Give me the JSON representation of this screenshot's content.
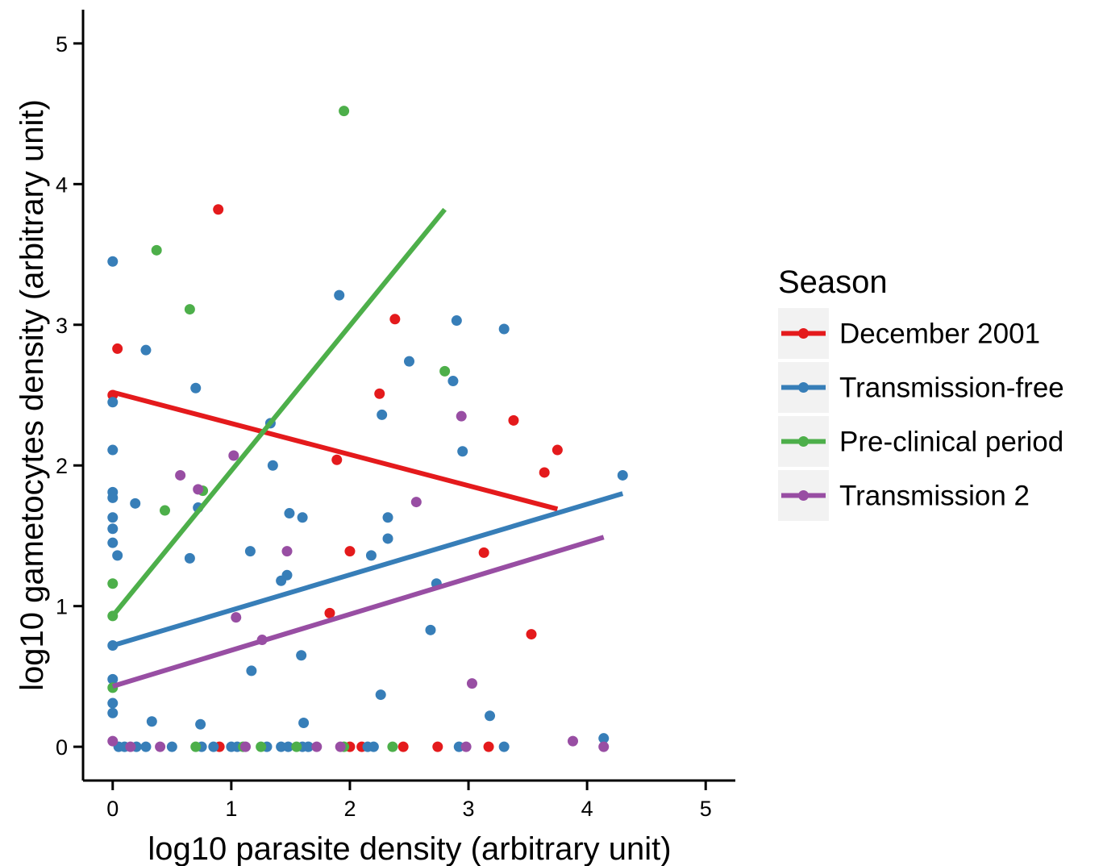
{
  "chart_data": {
    "type": "scatter",
    "xlabel": "log10 parasite density (arbitrary unit)",
    "ylabel": "log10 gametocytes density (arbitrary unit)",
    "xlim": [
      -0.25,
      5.25
    ],
    "ylim": [
      -0.24,
      5.24
    ],
    "x_ticks": [
      0,
      1,
      2,
      3,
      4,
      5
    ],
    "y_ticks": [
      0,
      1,
      2,
      3,
      4,
      5
    ],
    "grid": false,
    "legend": {
      "title": "Season",
      "position": "right"
    },
    "series": [
      {
        "name": "December 2001",
        "color": "#E41A1C",
        "points": [
          [
            0,
            2.5
          ],
          [
            0.04,
            2.83
          ],
          [
            0.89,
            3.82
          ],
          [
            2.38,
            3.04
          ],
          [
            2.25,
            2.51
          ],
          [
            3.38,
            2.32
          ],
          [
            3.75,
            2.11
          ],
          [
            3.64,
            1.95
          ],
          [
            1.89,
            2.04
          ],
          [
            2.0,
            1.39
          ],
          [
            3.13,
            1.38
          ],
          [
            1.83,
            0.95
          ],
          [
            3.53,
            0.8
          ],
          [
            0.9,
            0
          ],
          [
            2.0,
            0
          ],
          [
            2.1,
            0
          ],
          [
            2.45,
            0
          ],
          [
            2.74,
            0
          ],
          [
            3.17,
            0
          ]
        ],
        "trend": {
          "x": [
            0,
            3.75
          ],
          "y": [
            2.52,
            1.69
          ]
        }
      },
      {
        "name": "Transmission-free",
        "color": "#377EB8",
        "points": [
          [
            0,
            3.45
          ],
          [
            0,
            2.45
          ],
          [
            0,
            2.11
          ],
          [
            0,
            1.81
          ],
          [
            0,
            1.77
          ],
          [
            0,
            1.63
          ],
          [
            0,
            1.55
          ],
          [
            0,
            1.45
          ],
          [
            0.04,
            1.36
          ],
          [
            0.19,
            1.73
          ],
          [
            0.28,
            2.82
          ],
          [
            0.7,
            2.55
          ],
          [
            0.72,
            1.7
          ],
          [
            0.65,
            1.34
          ],
          [
            1.33,
            2.3
          ],
          [
            1.35,
            2.0
          ],
          [
            1.91,
            3.21
          ],
          [
            2.5,
            2.74
          ],
          [
            2.9,
            3.03
          ],
          [
            3.3,
            2.97
          ],
          [
            2.87,
            2.6
          ],
          [
            2.95,
            2.1
          ],
          [
            2.27,
            2.36
          ],
          [
            1.49,
            1.66
          ],
          [
            1.6,
            1.63
          ],
          [
            2.32,
            1.63
          ],
          [
            2.32,
            1.48
          ],
          [
            2.18,
            1.36
          ],
          [
            1.16,
            1.39
          ],
          [
            1.47,
            1.22
          ],
          [
            1.42,
            1.18
          ],
          [
            2.73,
            1.16
          ],
          [
            2.68,
            0.83
          ],
          [
            1.59,
            0.65
          ],
          [
            1.17,
            0.54
          ],
          [
            2.26,
            0.37
          ],
          [
            0,
            0.72
          ],
          [
            0,
            0.48
          ],
          [
            0,
            0.31
          ],
          [
            0,
            0.24
          ],
          [
            0.33,
            0.18
          ],
          [
            0.74,
            0.16
          ],
          [
            1.61,
            0.17
          ],
          [
            3.18,
            0.22
          ],
          [
            4.3,
            1.93
          ],
          [
            4.14,
            0.06
          ],
          [
            0.05,
            0
          ],
          [
            0.1,
            0
          ],
          [
            0.2,
            0
          ],
          [
            0.28,
            0
          ],
          [
            0.5,
            0
          ],
          [
            0.75,
            0
          ],
          [
            0.85,
            0
          ],
          [
            1.0,
            0
          ],
          [
            1.05,
            0
          ],
          [
            1.3,
            0
          ],
          [
            1.42,
            0
          ],
          [
            1.48,
            0
          ],
          [
            1.6,
            0
          ],
          [
            1.65,
            0
          ],
          [
            2.15,
            0
          ],
          [
            2.2,
            0
          ],
          [
            2.92,
            0
          ],
          [
            3.3,
            0
          ]
        ],
        "trend": {
          "x": [
            0,
            4.3
          ],
          "y": [
            0.72,
            1.8
          ]
        }
      },
      {
        "name": "Pre-clinical period",
        "color": "#4DAF4A",
        "points": [
          [
            1.95,
            4.52
          ],
          [
            0.37,
            3.53
          ],
          [
            0.65,
            3.11
          ],
          [
            2.8,
            2.67
          ],
          [
            0.76,
            1.82
          ],
          [
            0.44,
            1.68
          ],
          [
            0,
            1.16
          ],
          [
            0,
            0.93
          ],
          [
            0,
            0.42
          ],
          [
            0.7,
            0
          ],
          [
            1.1,
            0
          ],
          [
            1.25,
            0
          ],
          [
            1.55,
            0
          ],
          [
            1.95,
            0
          ],
          [
            2.36,
            0
          ]
        ],
        "trend": {
          "x": [
            0,
            2.8
          ],
          "y": [
            0.93,
            3.82
          ]
        }
      },
      {
        "name": "Transmission 2",
        "color": "#984EA3",
        "points": [
          [
            0.57,
            1.93
          ],
          [
            0.72,
            1.83
          ],
          [
            1.02,
            2.07
          ],
          [
            2.94,
            2.35
          ],
          [
            2.56,
            1.74
          ],
          [
            1.47,
            1.39
          ],
          [
            1.04,
            0.92
          ],
          [
            1.26,
            0.76
          ],
          [
            3.03,
            0.45
          ],
          [
            3.88,
            0.04
          ],
          [
            0,
            0.04
          ],
          [
            0.15,
            0
          ],
          [
            0.4,
            0
          ],
          [
            1.12,
            0
          ],
          [
            1.72,
            0
          ],
          [
            1.92,
            0
          ],
          [
            2.98,
            0
          ],
          [
            4.14,
            0
          ]
        ],
        "trend": {
          "x": [
            0,
            4.14
          ],
          "y": [
            0.43,
            1.49
          ]
        }
      }
    ]
  }
}
